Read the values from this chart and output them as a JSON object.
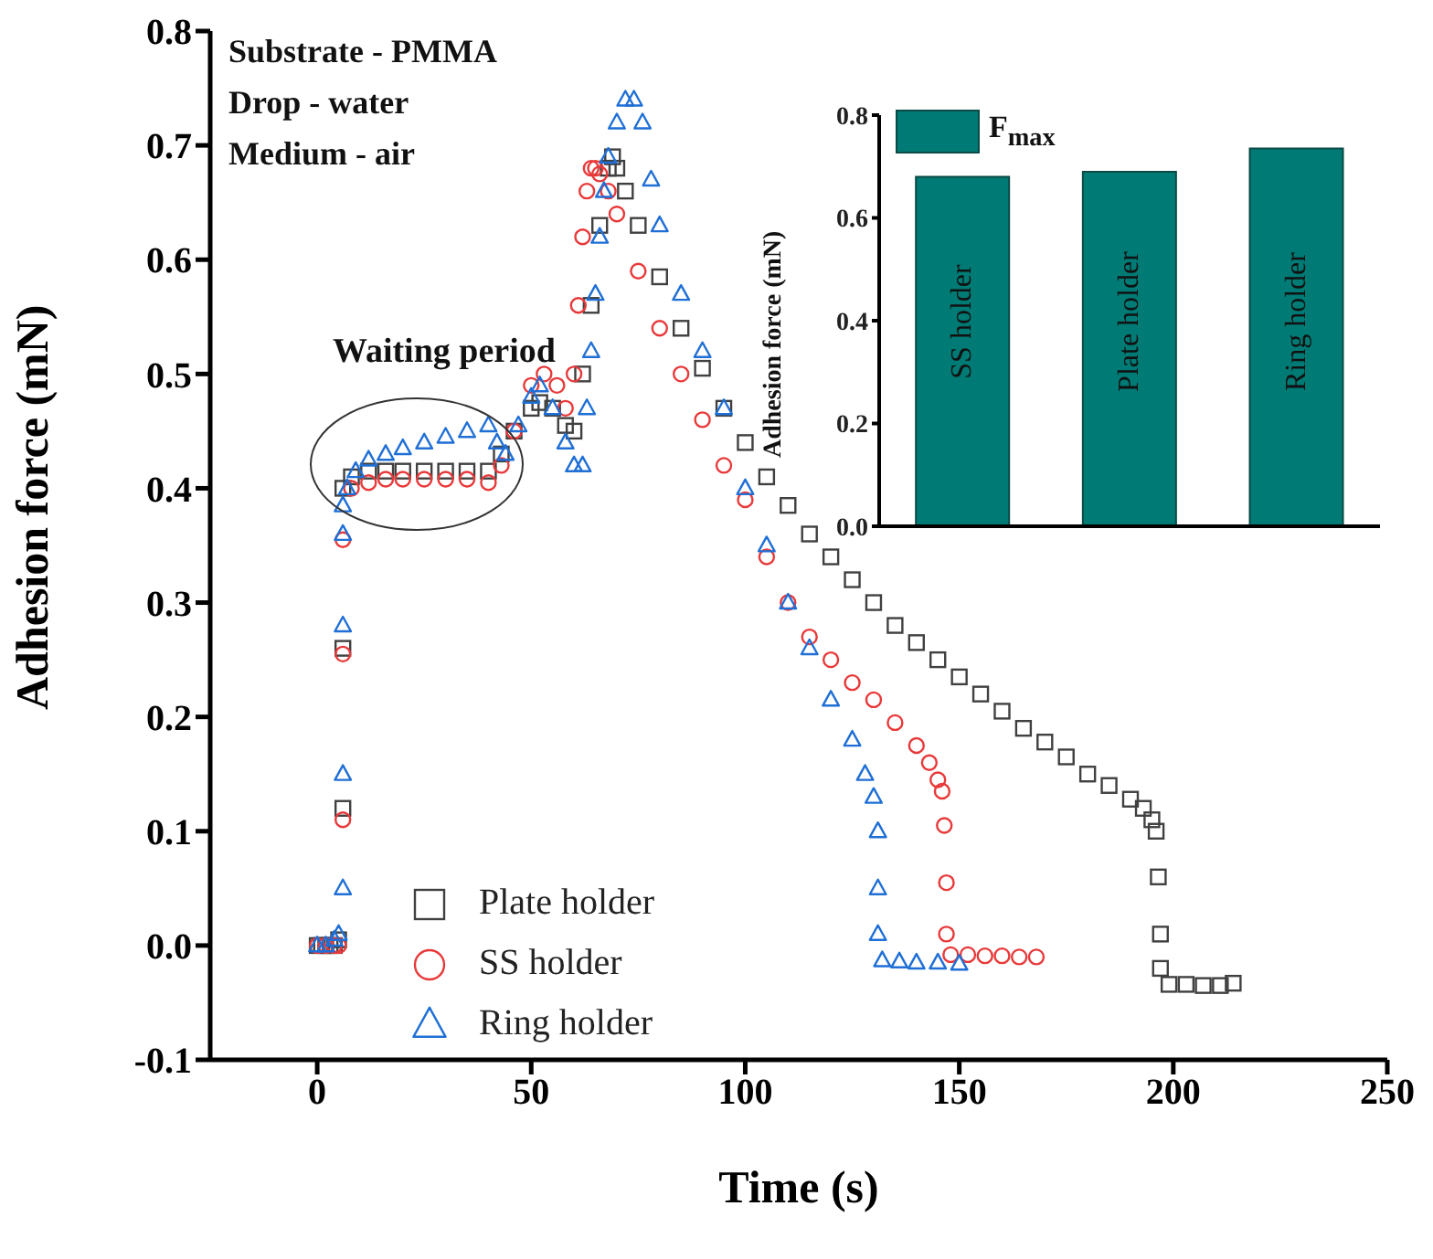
{
  "chart_data": [
    {
      "type": "scatter",
      "xlabel": "Time (s)",
      "ylabel": "Adhesion force (mN)",
      "xlim": [
        -25,
        250
      ],
      "xticks": [
        0,
        50,
        100,
        150,
        200,
        250
      ],
      "ylim": [
        -0.1,
        0.8
      ],
      "yticks": [
        -0.1,
        {
          "value": 0,
          "label": "0.0"
        },
        0.1,
        0.2,
        0.3,
        0.4,
        0.5,
        0.6,
        0.7,
        0.8
      ],
      "legend": "bottom left",
      "annotations": [
        "Substrate - PMMA",
        "Drop - water",
        "Medium - air",
        "Waiting period"
      ],
      "series": [
        {
          "name": "Plate holder",
          "color": "#404040",
          "marker": "square",
          "x": [
            0,
            1,
            2,
            3,
            4,
            5,
            6,
            6,
            6,
            8,
            12,
            16,
            20,
            25,
            30,
            35,
            40,
            43,
            46,
            50,
            52,
            55,
            58,
            60,
            62,
            64,
            66,
            68,
            69,
            70,
            72,
            75,
            80,
            85,
            90,
            95,
            100,
            105,
            110,
            115,
            120,
            125,
            130,
            135,
            140,
            145,
            150,
            155,
            160,
            165,
            170,
            175,
            180,
            185,
            190,
            193,
            195,
            196,
            196.5,
            197,
            197,
            199,
            203,
            207,
            211,
            214
          ],
          "values": [
            0,
            0,
            0,
            0,
            0,
            0.005,
            0.12,
            0.26,
            0.4,
            0.41,
            0.415,
            0.415,
            0.415,
            0.415,
            0.415,
            0.415,
            0.415,
            0.43,
            0.45,
            0.47,
            0.475,
            0.47,
            0.455,
            0.45,
            0.5,
            0.56,
            0.63,
            0.68,
            0.69,
            0.68,
            0.66,
            0.63,
            0.585,
            0.54,
            0.505,
            0.47,
            0.44,
            0.41,
            0.385,
            0.36,
            0.34,
            0.32,
            0.3,
            0.28,
            0.265,
            0.25,
            0.235,
            0.22,
            0.205,
            0.19,
            0.178,
            0.165,
            0.15,
            0.14,
            0.128,
            0.12,
            0.11,
            0.1,
            0.06,
            0.01,
            -0.02,
            -0.034,
            -0.034,
            -0.035,
            -0.035,
            -0.033
          ]
        },
        {
          "name": "SS holder",
          "color": "#e8393a",
          "marker": "circle",
          "x": [
            0,
            2,
            4,
            5,
            6,
            6,
            6,
            8,
            12,
            16,
            20,
            25,
            30,
            35,
            40,
            43,
            46,
            50,
            53,
            56,
            58,
            60,
            61,
            62,
            63,
            64,
            65,
            66,
            68,
            70,
            75,
            80,
            85,
            90,
            95,
            100,
            105,
            110,
            115,
            120,
            125,
            130,
            135,
            140,
            143,
            145,
            146,
            146.5,
            147,
            147,
            148,
            152,
            156,
            160,
            164,
            168
          ],
          "values": [
            0,
            0,
            0,
            0,
            0.11,
            0.255,
            0.355,
            0.4,
            0.405,
            0.408,
            0.408,
            0.408,
            0.408,
            0.408,
            0.405,
            0.42,
            0.45,
            0.49,
            0.5,
            0.49,
            0.47,
            0.5,
            0.56,
            0.62,
            0.66,
            0.68,
            0.68,
            0.675,
            0.66,
            0.64,
            0.59,
            0.54,
            0.5,
            0.46,
            0.42,
            0.39,
            0.34,
            0.3,
            0.27,
            0.25,
            0.23,
            0.215,
            0.195,
            0.175,
            0.16,
            0.145,
            0.135,
            0.105,
            0.055,
            0.01,
            -0.008,
            -0.008,
            -0.009,
            -0.009,
            -0.01,
            -0.01
          ]
        },
        {
          "name": "Ring holder",
          "color": "#1f6fd6",
          "marker": "triangle",
          "x": [
            0,
            2,
            4,
            5,
            6,
            6,
            6,
            6,
            6,
            7,
            9,
            12,
            16,
            20,
            25,
            30,
            35,
            40,
            42,
            44,
            47,
            50,
            52,
            55,
            58,
            60,
            62,
            63,
            64,
            65,
            66,
            67,
            68,
            70,
            72,
            74,
            76,
            78,
            80,
            85,
            90,
            95,
            100,
            105,
            110,
            115,
            120,
            125,
            128,
            130,
            131,
            131,
            131,
            132,
            136,
            140,
            145,
            150
          ],
          "values": [
            0,
            0,
            0.005,
            0.01,
            0.05,
            0.15,
            0.28,
            0.36,
            0.385,
            0.4,
            0.415,
            0.425,
            0.43,
            0.435,
            0.44,
            0.445,
            0.45,
            0.455,
            0.44,
            0.43,
            0.455,
            0.48,
            0.49,
            0.47,
            0.44,
            0.42,
            0.42,
            0.47,
            0.52,
            0.57,
            0.62,
            0.66,
            0.69,
            0.72,
            0.74,
            0.74,
            0.72,
            0.67,
            0.63,
            0.57,
            0.52,
            0.47,
            0.4,
            0.35,
            0.3,
            0.26,
            0.215,
            0.18,
            0.15,
            0.13,
            0.1,
            0.05,
            0.01,
            -0.013,
            -0.014,
            -0.015,
            -0.015,
            -0.016
          ]
        }
      ]
    },
    {
      "type": "bar",
      "ylabel": "Adhesion force (mN)",
      "categories": [
        "SS holder",
        "Plate holder",
        "Ring holder"
      ],
      "ylim": [
        0,
        0.8
      ],
      "yticks": [
        {
          "value": 0,
          "label": "0.0"
        },
        0.2,
        0.4,
        0.6,
        0.8
      ],
      "legend": "top left",
      "series": [
        {
          "name": "F$_{max}$",
          "color": "#007a74",
          "values": [
            0.68,
            0.69,
            0.735
          ]
        }
      ]
    }
  ]
}
